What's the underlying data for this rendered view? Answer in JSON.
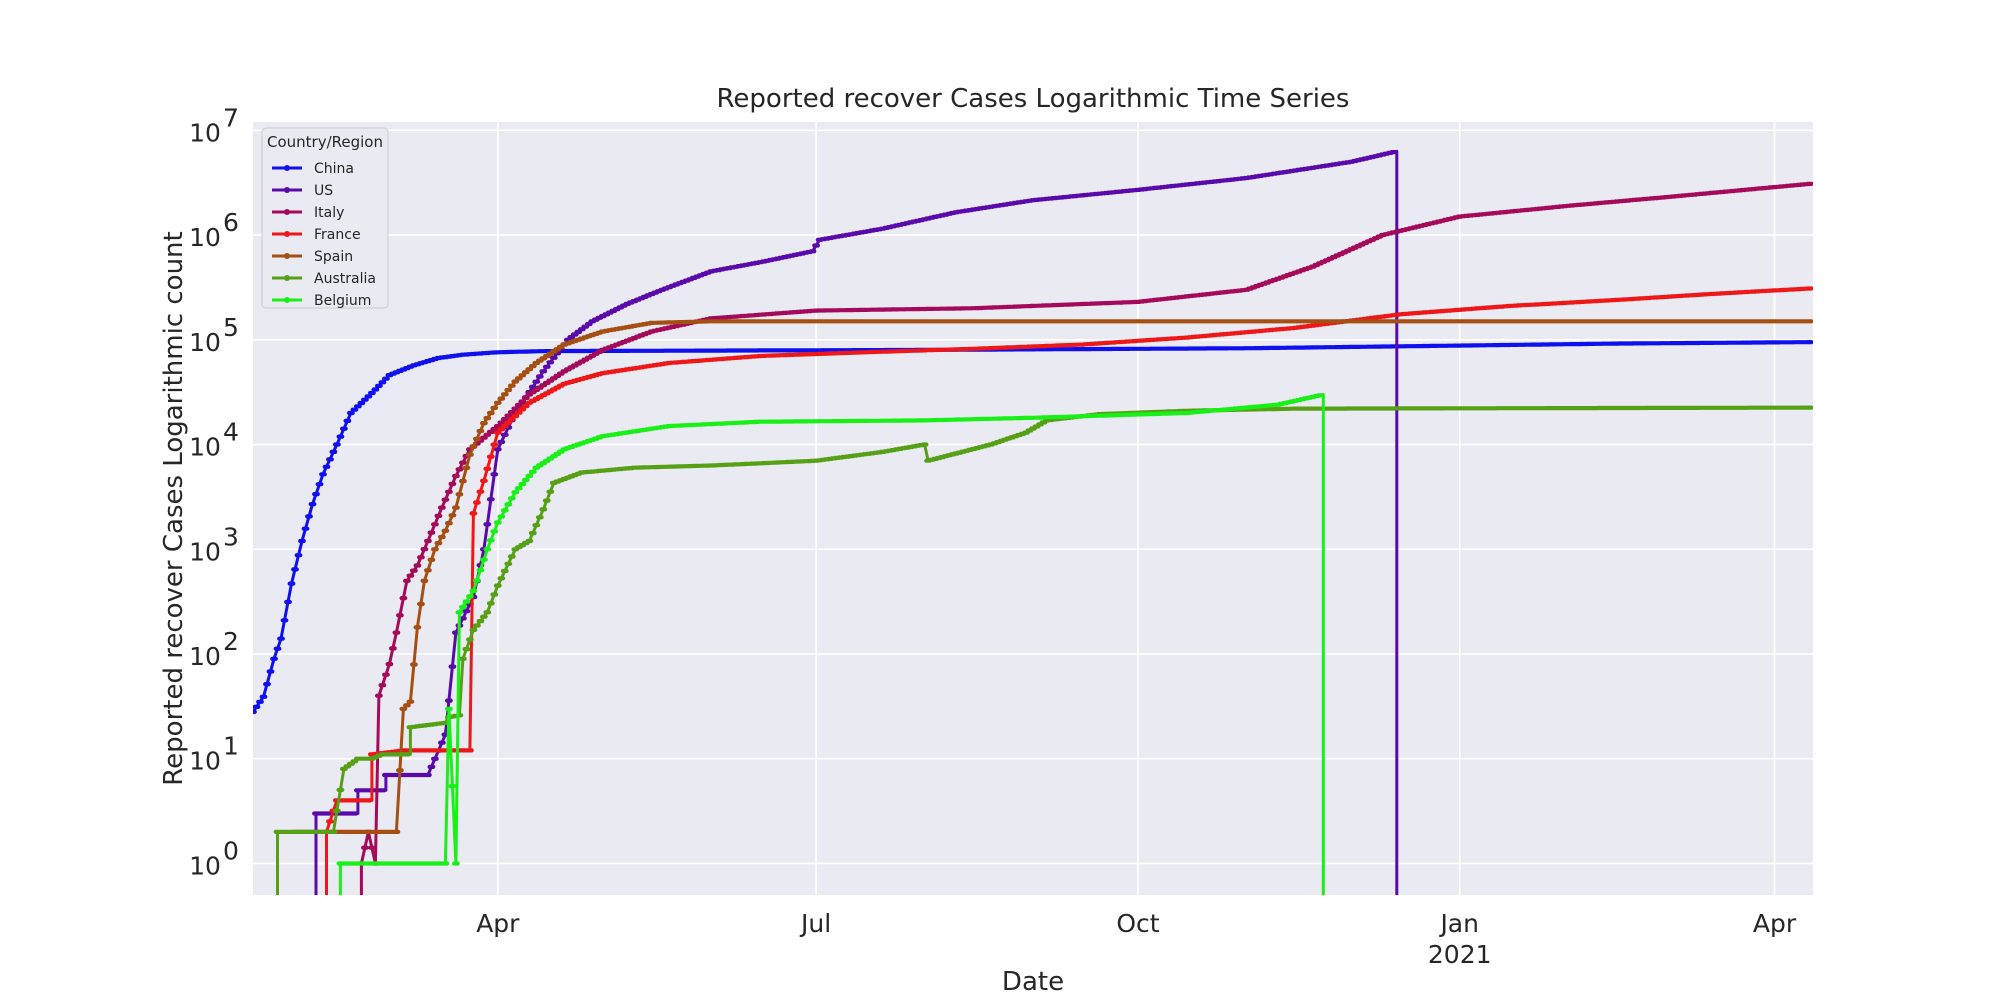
{
  "chart_data": {
    "type": "line",
    "title": "Reported recover Cases Logarithmic Time Series",
    "xlabel": "Date",
    "ylabel": "Reported recover Cases Logarithmic count",
    "yscale": "log",
    "ylim": [
      0.5,
      12000000
    ],
    "xlim": [
      "2020-01-22",
      "2021-04-12"
    ],
    "grid": true,
    "legend_position": "top-left",
    "x_ticks": [
      {
        "date": "2020-04-01",
        "label": "Apr",
        "sub": ""
      },
      {
        "date": "2020-07-01",
        "label": "Jul",
        "sub": ""
      },
      {
        "date": "2020-10-01",
        "label": "Oct",
        "sub": ""
      },
      {
        "date": "2021-01-01",
        "label": "Jan",
        "sub": "2021"
      },
      {
        "date": "2021-04-01",
        "label": "Apr",
        "sub": ""
      }
    ],
    "y_ticks": [
      {
        "value": 1,
        "base": "10",
        "exp": "0"
      },
      {
        "value": 10,
        "base": "10",
        "exp": "1"
      },
      {
        "value": 100,
        "base": "10",
        "exp": "2"
      },
      {
        "value": 1000,
        "base": "10",
        "exp": "3"
      },
      {
        "value": 10000,
        "base": "10",
        "exp": "4"
      },
      {
        "value": 100000,
        "base": "10",
        "exp": "5"
      },
      {
        "value": 1000000,
        "base": "10",
        "exp": "6"
      },
      {
        "value": 10000000,
        "base": "10",
        "exp": "7"
      }
    ],
    "legend_title": "Country/Region",
    "series": [
      {
        "name": "China",
        "color": "#1010ee",
        "points": [
          [
            "2020-01-22",
            28
          ],
          [
            "2020-01-25",
            39
          ],
          [
            "2020-01-28",
            90
          ],
          [
            "2020-01-30",
            140
          ],
          [
            "2020-02-02",
            470
          ],
          [
            "2020-02-05",
            1200
          ],
          [
            "2020-02-08",
            2700
          ],
          [
            "2020-02-11",
            5200
          ],
          [
            "2020-02-15",
            10000
          ],
          [
            "2020-02-19",
            20000
          ],
          [
            "2020-02-25",
            31000
          ],
          [
            "2020-03-01",
            46000
          ],
          [
            "2020-03-08",
            57000
          ],
          [
            "2020-03-15",
            67000
          ],
          [
            "2020-03-22",
            72000
          ],
          [
            "2020-04-01",
            76000
          ],
          [
            "2020-04-15",
            78000
          ],
          [
            "2020-05-15",
            78500
          ],
          [
            "2020-08-01",
            80000
          ],
          [
            "2020-11-01",
            83000
          ],
          [
            "2021-01-01",
            88000
          ],
          [
            "2021-02-15",
            92000
          ],
          [
            "2021-04-12",
            95000
          ]
        ]
      },
      {
        "name": "US",
        "color": "#5a0aaa",
        "points": [
          [
            "2020-02-09",
            0.3
          ],
          [
            "2020-02-09",
            3
          ],
          [
            "2020-02-21",
            3
          ],
          [
            "2020-02-21",
            5
          ],
          [
            "2020-02-29",
            5
          ],
          [
            "2020-02-29",
            7
          ],
          [
            "2020-03-12",
            7
          ],
          [
            "2020-03-17",
            17
          ],
          [
            "2020-03-20",
            160
          ],
          [
            "2020-03-25",
            350
          ],
          [
            "2020-03-28",
            1000
          ],
          [
            "2020-04-01",
            9000
          ],
          [
            "2020-04-06",
            20000
          ],
          [
            "2020-04-14",
            50000
          ],
          [
            "2020-04-21",
            100000
          ],
          [
            "2020-04-28",
            150000
          ],
          [
            "2020-05-08",
            220000
          ],
          [
            "2020-05-18",
            300000
          ],
          [
            "2020-06-01",
            450000
          ],
          [
            "2020-06-15",
            550000
          ],
          [
            "2020-06-30",
            700000
          ],
          [
            "2020-07-02",
            900000
          ],
          [
            "2020-07-20",
            1150000
          ],
          [
            "2020-08-10",
            1650000
          ],
          [
            "2020-09-01",
            2150000
          ],
          [
            "2020-10-01",
            2700000
          ],
          [
            "2020-11-01",
            3500000
          ],
          [
            "2020-12-01",
            5000000
          ],
          [
            "2020-12-14",
            6300000
          ],
          [
            "2020-12-14",
            0.3
          ]
        ]
      },
      {
        "name": "Italy",
        "color": "#a50a5a",
        "points": [
          [
            "2020-02-22",
            0.3
          ],
          [
            "2020-02-22",
            1
          ],
          [
            "2020-02-24",
            2
          ],
          [
            "2020-02-26",
            1
          ],
          [
            "2020-02-27",
            40
          ],
          [
            "2020-03-01",
            80
          ],
          [
            "2020-03-03",
            160
          ],
          [
            "2020-03-06",
            500
          ],
          [
            "2020-03-09",
            700
          ],
          [
            "2020-03-12",
            1200
          ],
          [
            "2020-03-16",
            2500
          ],
          [
            "2020-03-20",
            5000
          ],
          [
            "2020-03-24",
            9000
          ],
          [
            "2020-04-01",
            15000
          ],
          [
            "2020-04-10",
            30000
          ],
          [
            "2020-04-20",
            50000
          ],
          [
            "2020-05-01",
            80000
          ],
          [
            "2020-05-15",
            120000
          ],
          [
            "2020-06-01",
            160000
          ],
          [
            "2020-07-01",
            190000
          ],
          [
            "2020-08-15",
            200000
          ],
          [
            "2020-10-01",
            230000
          ],
          [
            "2020-11-01",
            300000
          ],
          [
            "2020-11-20",
            500000
          ],
          [
            "2020-12-10",
            1000000
          ],
          [
            "2021-01-01",
            1500000
          ],
          [
            "2021-02-01",
            1900000
          ],
          [
            "2021-03-01",
            2300000
          ],
          [
            "2021-04-12",
            3100000
          ]
        ]
      },
      {
        "name": "France",
        "color": "#ee1818",
        "points": [
          [
            "2020-02-12",
            0.3
          ],
          [
            "2020-02-12",
            2
          ],
          [
            "2020-02-15",
            4
          ],
          [
            "2020-02-25",
            4
          ],
          [
            "2020-02-25",
            11
          ],
          [
            "2020-03-05",
            12
          ],
          [
            "2020-03-24",
            12
          ],
          [
            "2020-03-25",
            2200
          ],
          [
            "2020-03-28",
            4500
          ],
          [
            "2020-04-01",
            13000
          ],
          [
            "2020-04-10",
            25000
          ],
          [
            "2020-04-20",
            38000
          ],
          [
            "2020-05-01",
            48000
          ],
          [
            "2020-05-20",
            60000
          ],
          [
            "2020-06-15",
            70000
          ],
          [
            "2020-07-15",
            76000
          ],
          [
            "2020-08-15",
            82000
          ],
          [
            "2020-09-15",
            90000
          ],
          [
            "2020-10-15",
            105000
          ],
          [
            "2020-11-15",
            130000
          ],
          [
            "2020-12-15",
            175000
          ],
          [
            "2021-01-15",
            210000
          ],
          [
            "2021-02-15",
            240000
          ],
          [
            "2021-03-15",
            275000
          ],
          [
            "2021-04-12",
            310000
          ]
        ]
      },
      {
        "name": "Spain",
        "color": "#a54f12",
        "points": [
          [
            "2020-02-03",
            2
          ],
          [
            "2020-03-03",
            2
          ],
          [
            "2020-03-05",
            30
          ],
          [
            "2020-03-07",
            35
          ],
          [
            "2020-03-09",
            180
          ],
          [
            "2020-03-11",
            500
          ],
          [
            "2020-03-14",
            1000
          ],
          [
            "2020-03-17",
            1500
          ],
          [
            "2020-03-20",
            2500
          ],
          [
            "2020-03-24",
            8000
          ],
          [
            "2020-03-28",
            16000
          ],
          [
            "2020-04-01",
            25000
          ],
          [
            "2020-04-06",
            40000
          ],
          [
            "2020-04-12",
            60000
          ],
          [
            "2020-04-20",
            90000
          ],
          [
            "2020-05-01",
            120000
          ],
          [
            "2020-05-15",
            145000
          ],
          [
            "2020-06-01",
            150000
          ],
          [
            "2021-04-12",
            150000
          ]
        ]
      },
      {
        "name": "Australia",
        "color": "#55a015",
        "points": [
          [
            "2020-01-29",
            0.3
          ],
          [
            "2020-01-29",
            2
          ],
          [
            "2020-02-14",
            2
          ],
          [
            "2020-02-17",
            8
          ],
          [
            "2020-02-21",
            10
          ],
          [
            "2020-02-25",
            10
          ],
          [
            "2020-02-28",
            11
          ],
          [
            "2020-03-07",
            11
          ],
          [
            "2020-03-07",
            20
          ],
          [
            "2020-03-17",
            22
          ],
          [
            "2020-03-18",
            25
          ],
          [
            "2020-03-21",
            26
          ],
          [
            "2020-03-22",
            90
          ],
          [
            "2020-03-25",
            170
          ],
          [
            "2020-03-29",
            250
          ],
          [
            "2020-04-01",
            450
          ],
          [
            "2020-04-06",
            1000
          ],
          [
            "2020-04-10",
            1200
          ],
          [
            "2020-04-14",
            2400
          ],
          [
            "2020-04-17",
            4300
          ],
          [
            "2020-04-25",
            5400
          ],
          [
            "2020-05-10",
            6000
          ],
          [
            "2020-06-01",
            6300
          ],
          [
            "2020-07-01",
            7000
          ],
          [
            "2020-07-20",
            8500
          ],
          [
            "2020-08-01",
            10000
          ],
          [
            "2020-08-02",
            7000
          ],
          [
            "2020-08-20",
            10000
          ],
          [
            "2020-08-30",
            13000
          ],
          [
            "2020-09-05",
            17000
          ],
          [
            "2020-09-20",
            19500
          ],
          [
            "2020-10-15",
            21000
          ],
          [
            "2020-11-15",
            22000
          ],
          [
            "2021-04-12",
            22500
          ]
        ]
      },
      {
        "name": "Belgium",
        "color": "#18f018",
        "points": [
          [
            "2020-02-16",
            0.3
          ],
          [
            "2020-02-16",
            1
          ],
          [
            "2020-03-17",
            1
          ],
          [
            "2020-03-18",
            30
          ],
          [
            "2020-03-20",
            1
          ],
          [
            "2020-03-21",
            250
          ],
          [
            "2020-03-25",
            400
          ],
          [
            "2020-03-29",
            1000
          ],
          [
            "2020-04-01",
            1800
          ],
          [
            "2020-04-06",
            3500
          ],
          [
            "2020-04-12",
            6000
          ],
          [
            "2020-04-20",
            9000
          ],
          [
            "2020-05-01",
            12000
          ],
          [
            "2020-05-20",
            15000
          ],
          [
            "2020-06-15",
            16500
          ],
          [
            "2020-08-01",
            17000
          ],
          [
            "2020-09-01",
            18000
          ],
          [
            "2020-10-15",
            20000
          ],
          [
            "2020-11-10",
            24000
          ],
          [
            "2020-11-23",
            30000
          ],
          [
            "2020-11-23",
            0.3
          ]
        ]
      }
    ]
  }
}
